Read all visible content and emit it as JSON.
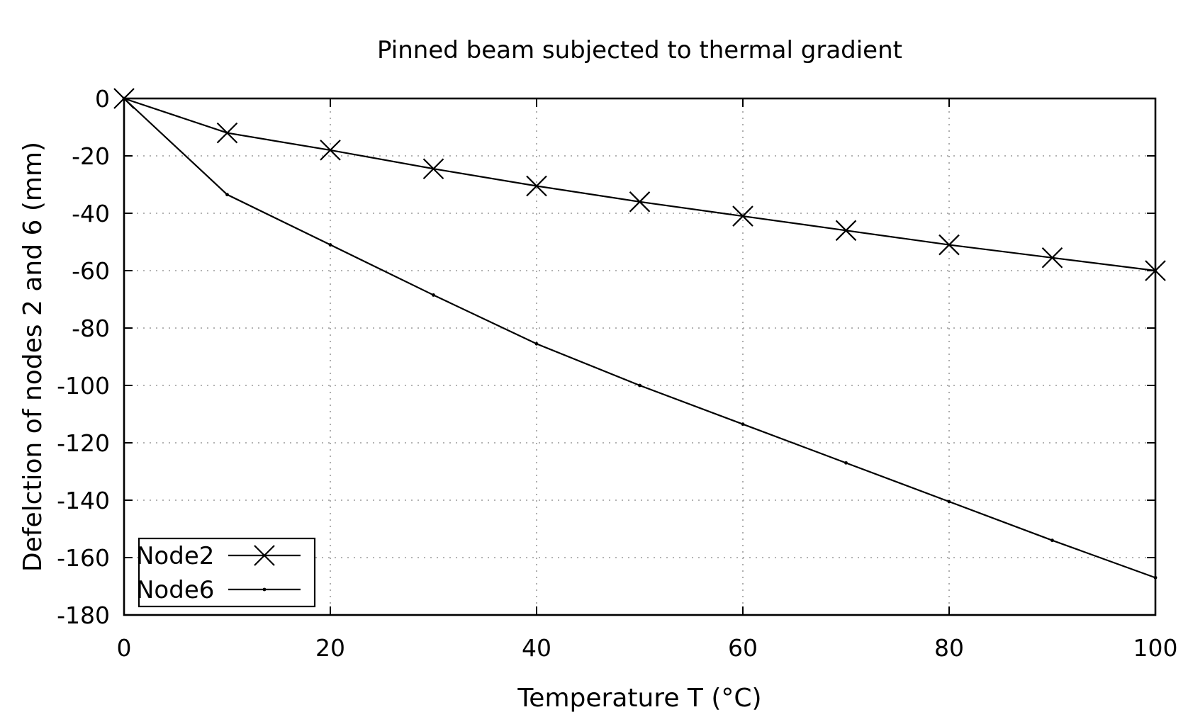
{
  "chart_data": {
    "type": "line",
    "title": "Pinned beam subjected to thermal gradient",
    "xlabel": "Temperature T (°C)",
    "ylabel": "Defelction of nodes 2 and 6 (mm)",
    "xlim": [
      0,
      100
    ],
    "ylim": [
      -180,
      0
    ],
    "xticks": [
      0,
      20,
      40,
      60,
      80,
      100
    ],
    "yticks": [
      0,
      -20,
      -40,
      -60,
      -80,
      -100,
      -120,
      -140,
      -160,
      -180
    ],
    "grid": true,
    "legend_position": "bottom-left",
    "series": [
      {
        "name": "Node2",
        "marker": "x",
        "x": [
          0,
          10,
          20,
          30,
          40,
          50,
          60,
          70,
          80,
          90,
          100
        ],
        "y": [
          0,
          -12,
          -18,
          -24.5,
          -30.5,
          -36,
          -41,
          -46,
          -51,
          -55.5,
          -60
        ]
      },
      {
        "name": "Node6",
        "marker": "dot",
        "x": [
          0,
          10,
          20,
          30,
          40,
          50,
          60,
          70,
          80,
          90,
          100
        ],
        "y": [
          0,
          -33.5,
          -51,
          -68.5,
          -85.5,
          -100,
          -113.5,
          -127,
          -140.5,
          -154,
          -167
        ]
      }
    ]
  }
}
